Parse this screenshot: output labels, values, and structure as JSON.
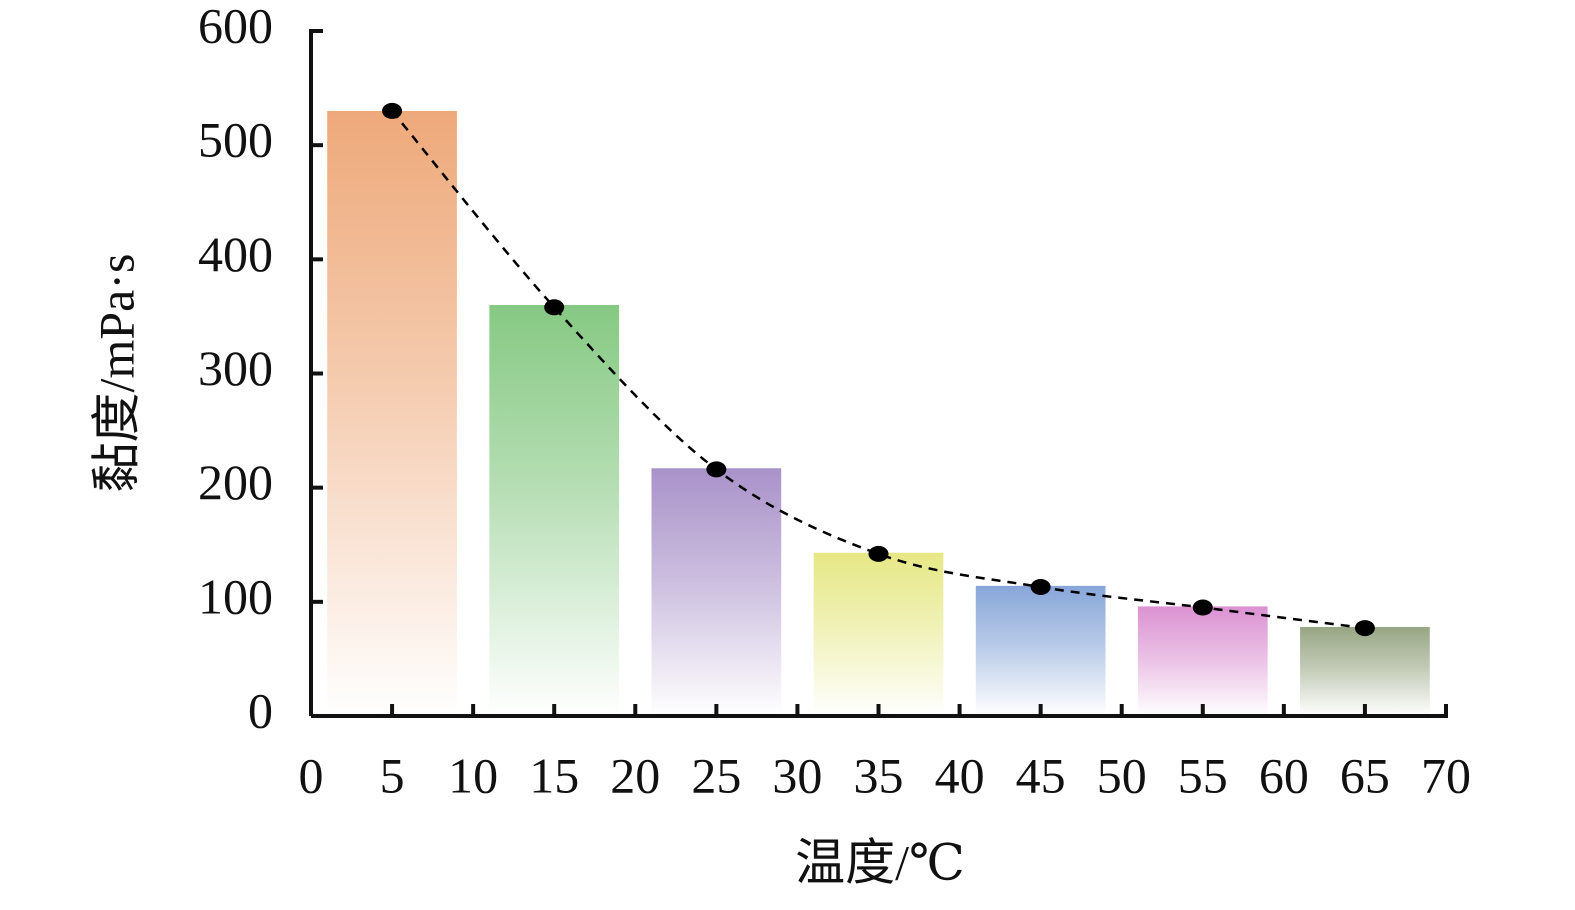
{
  "chart_data": {
    "type": "bar",
    "x_label": "温度/℃",
    "y_label": "黏度/mPa·s",
    "x": [
      5,
      15,
      25,
      35,
      45,
      55,
      65
    ],
    "series": [
      {
        "type": "bar",
        "values": [
          530,
          360,
          217,
          143,
          114,
          96,
          78
        ],
        "colors": [
          "#eea97a",
          "#86c983",
          "#a992c9",
          "#e6e886",
          "#87a6d8",
          "#db92d2",
          "#98a684"
        ]
      },
      {
        "type": "line",
        "values": [
          530,
          358,
          216,
          142,
          113,
          95,
          77
        ],
        "color": "#000000",
        "line_style": "dashed",
        "markers": true
      }
    ],
    "xlim": [
      0,
      70
    ],
    "xticks": [
      0,
      5,
      10,
      15,
      20,
      25,
      30,
      35,
      40,
      45,
      50,
      55,
      60,
      65,
      70
    ],
    "ylim": [
      0,
      600
    ],
    "yticks": [
      0,
      100,
      200,
      300,
      400,
      500,
      600
    ],
    "grid": false
  }
}
